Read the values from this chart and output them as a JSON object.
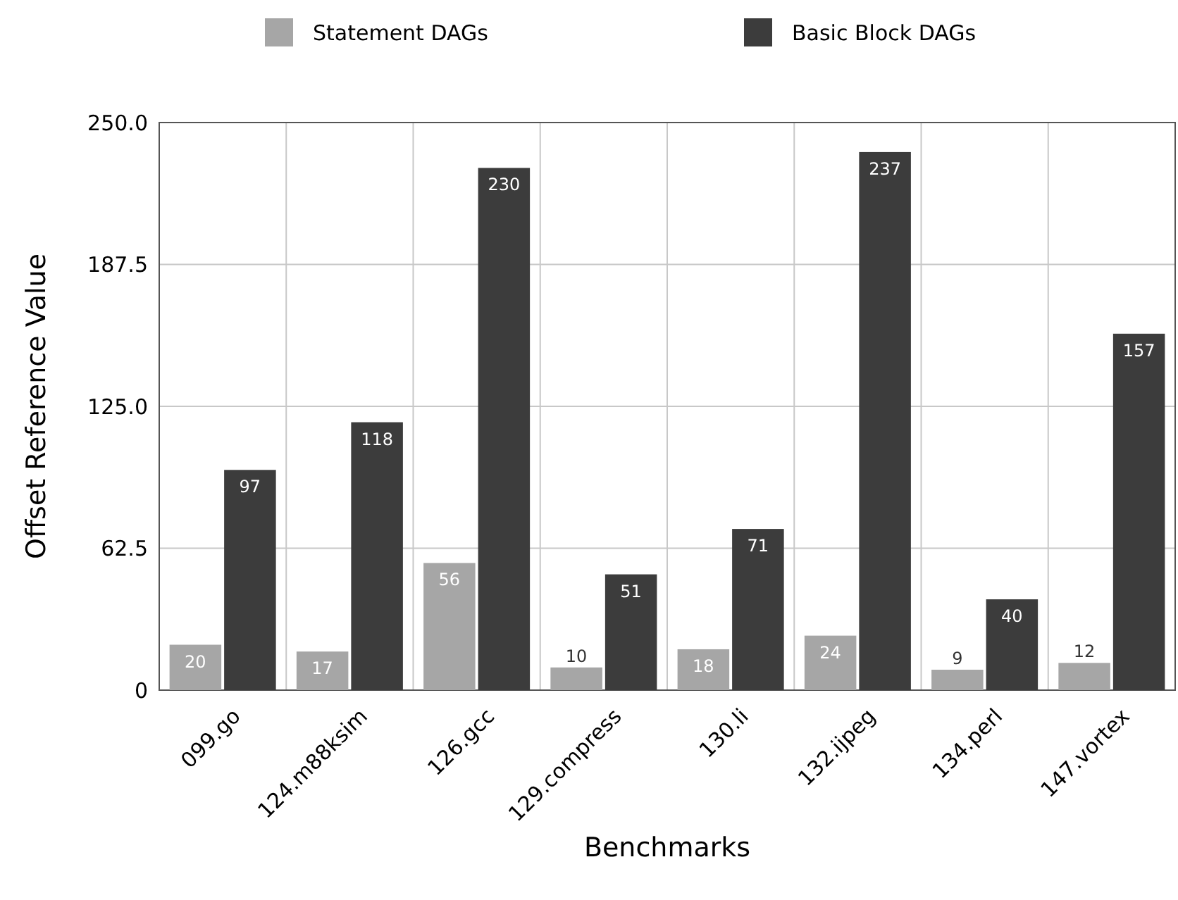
{
  "chart_data": {
    "type": "bar",
    "xlabel": "Benchmarks",
    "ylabel": "Offset Reference Value",
    "categories": [
      "099.go",
      "124.m88ksim",
      "126.gcc",
      "129.compress",
      "130.li",
      "132.ijpeg",
      "134.perl",
      "147.vortex"
    ],
    "series": [
      {
        "name": "Statement DAGs",
        "color": "#a6a6a6",
        "values": [
          20,
          17,
          56,
          10,
          18,
          24,
          9,
          12
        ]
      },
      {
        "name": "Basic Block DAGs",
        "color": "#3c3c3c",
        "values": [
          97,
          118,
          230,
          51,
          71,
          237,
          40,
          157
        ]
      }
    ],
    "ylim": [
      0,
      250
    ],
    "yticks": [
      0,
      {
        "value": 62.5,
        "label": "62.5"
      },
      {
        "value": 125,
        "label": "125.0"
      },
      {
        "value": 187.5,
        "label": "187.5"
      },
      {
        "value": 250,
        "label": "250.0"
      }
    ],
    "grid": true,
    "legend": "top",
    "data_labels": true
  }
}
